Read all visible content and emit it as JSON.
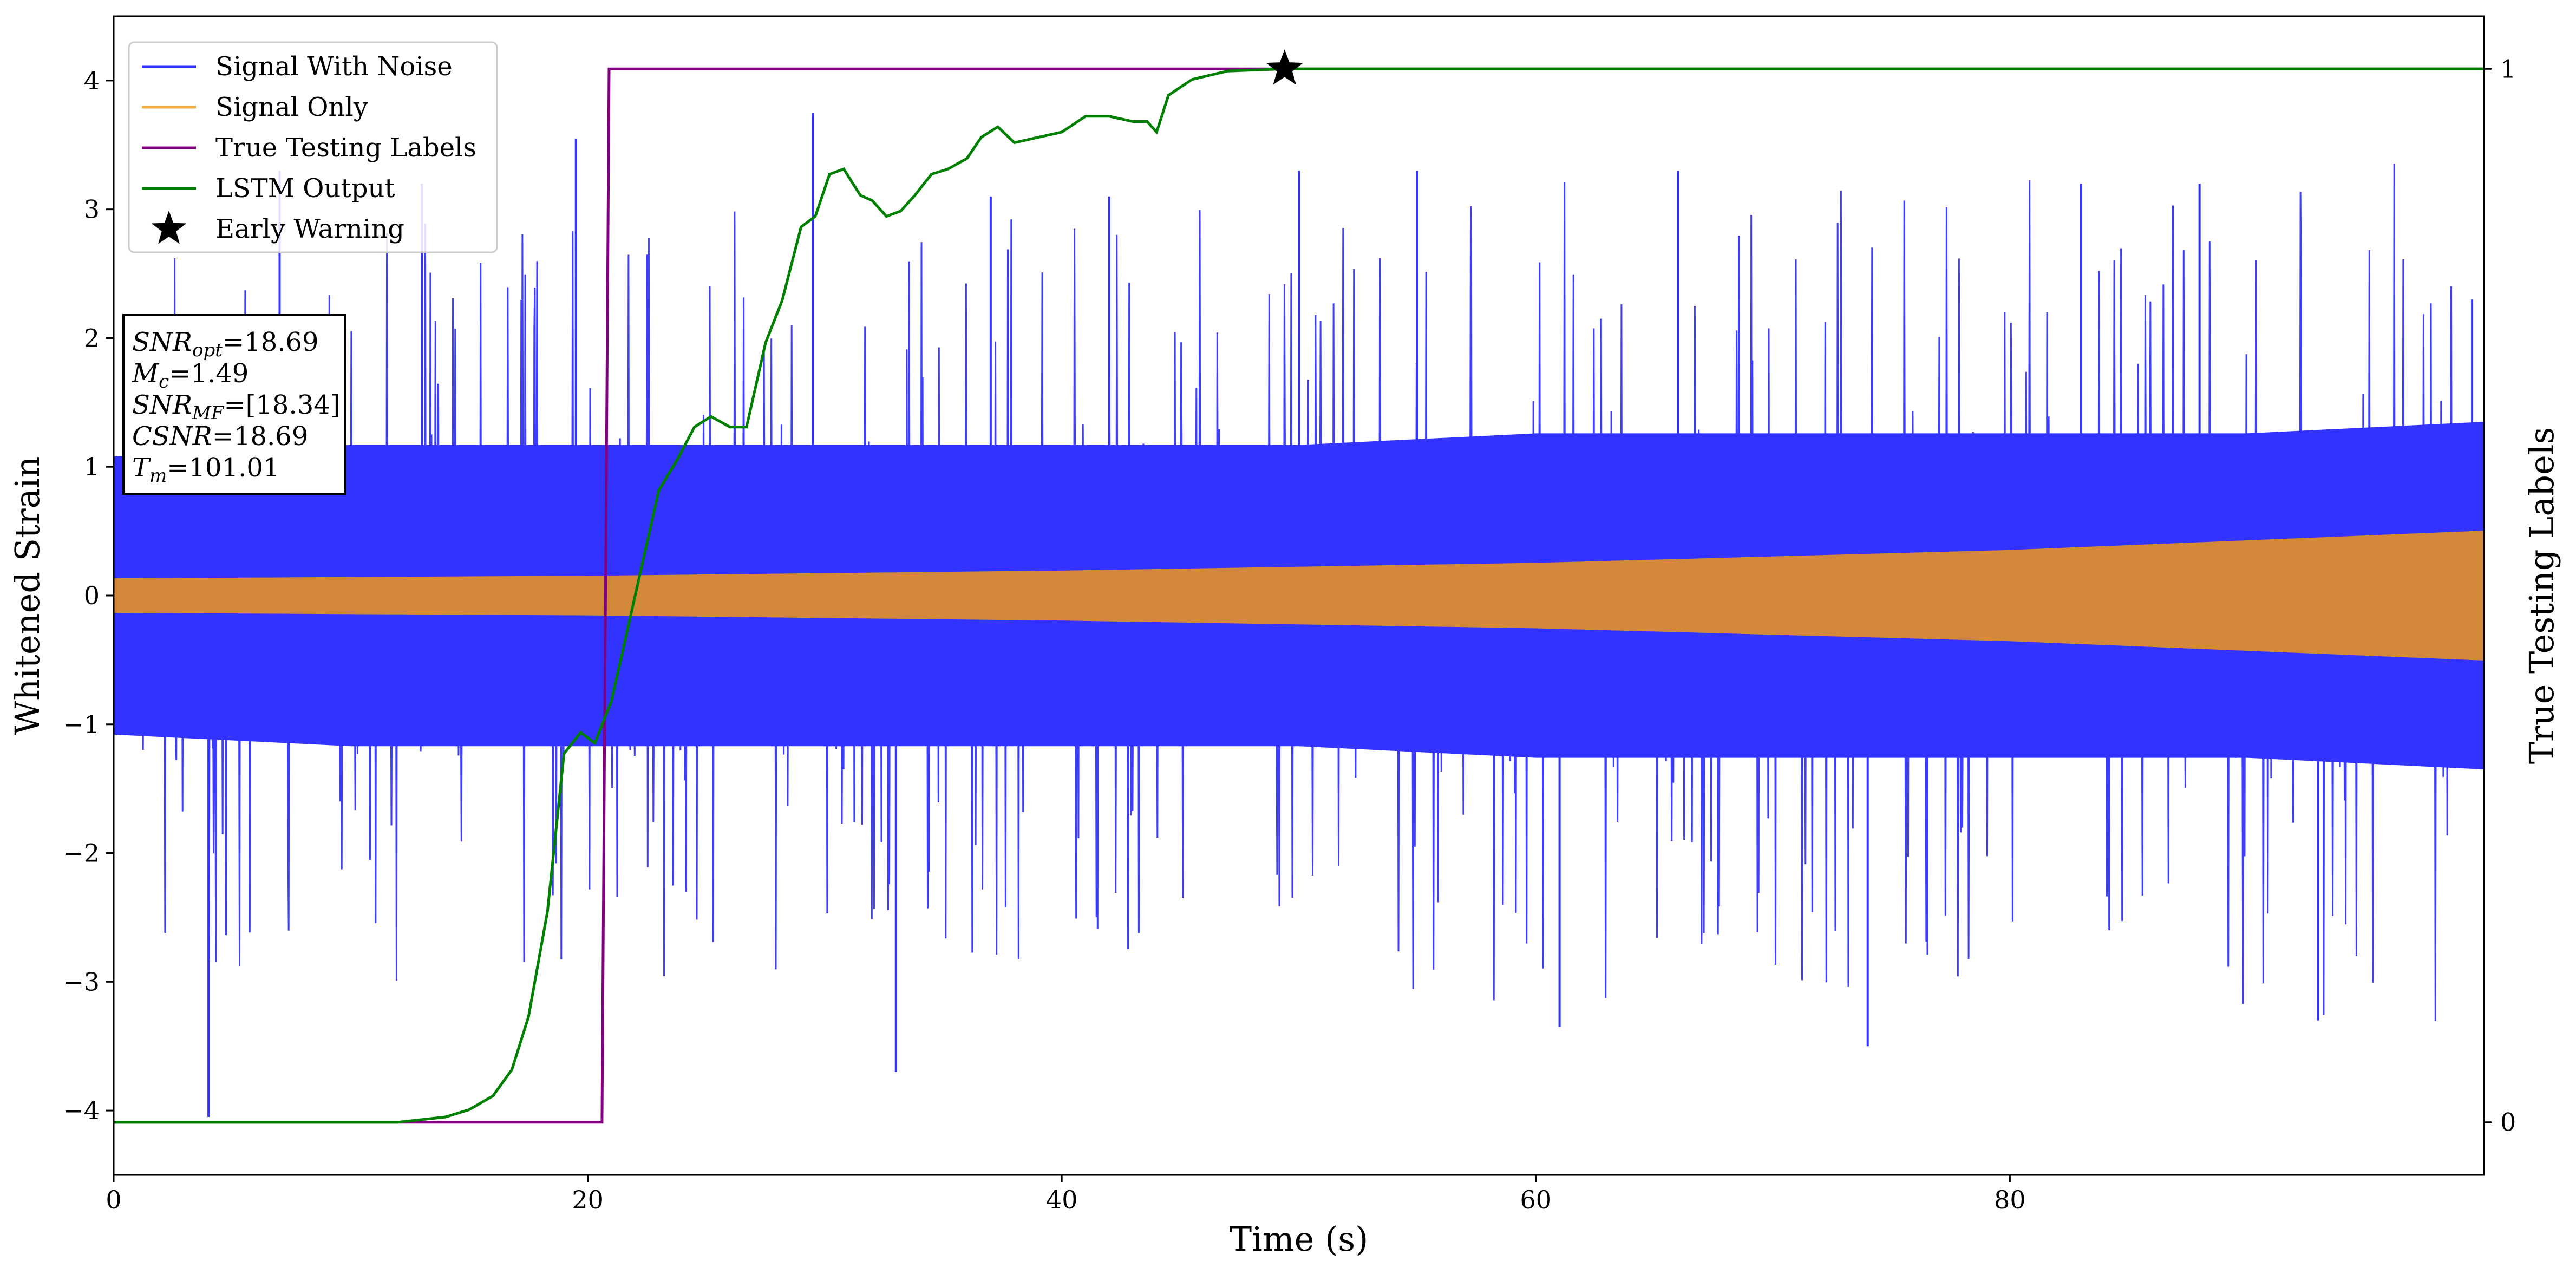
{
  "chart_data": {
    "type": "line",
    "xlabel": "Time (s)",
    "ylabel": "Whitened Strain",
    "ylabel_right": "True Testing Labels",
    "xlim": [
      0,
      100
    ],
    "ylim": [
      -4.5,
      4.5
    ],
    "ylim_right": [
      -0.05,
      1.05
    ],
    "x_ticks": [
      "0",
      "20",
      "40",
      "60",
      "80"
    ],
    "x_tick_values": [
      0,
      20,
      40,
      60,
      80
    ],
    "y_ticks": [
      "−4",
      "−3",
      "−2",
      "−1",
      "0",
      "1",
      "2",
      "3",
      "4"
    ],
    "y_tick_values": [
      -4,
      -3,
      -2,
      -1,
      0,
      1,
      2,
      3,
      4
    ],
    "y_right_ticks": [
      "0",
      "1"
    ],
    "y_right_tick_values": [
      0,
      1
    ],
    "grid": false,
    "legend_position": "top-left",
    "series": [
      {
        "name": "Signal With Noise",
        "color": "#3333ff",
        "axis": "left",
        "description_of_values": "dense noise band",
        "envelope_x": [
          0,
          10,
          20,
          30,
          40,
          50,
          60,
          70,
          80,
          90,
          100
        ],
        "envelope_upper": [
          1.2,
          1.3,
          1.3,
          1.3,
          1.3,
          1.3,
          1.4,
          1.4,
          1.4,
          1.4,
          1.5
        ],
        "envelope_lower": [
          -1.2,
          -1.3,
          -1.3,
          -1.3,
          -1.3,
          -1.3,
          -1.4,
          -1.4,
          -1.4,
          -1.4,
          -1.5
        ],
        "spikes_x": [
          4,
          7,
          13,
          19.5,
          29.5,
          33,
          37,
          42,
          50,
          55,
          61,
          66,
          74,
          83,
          88,
          93,
          99.5
        ],
        "spikes_y": [
          -4.05,
          3.3,
          3.2,
          3.55,
          3.75,
          -3.7,
          3.1,
          3.1,
          3.3,
          3.3,
          -3.35,
          3.3,
          -3.5,
          3.2,
          3.2,
          -3.3,
          2.3
        ]
      },
      {
        "name": "Signal Only",
        "color": "#f2a93b",
        "axis": "left",
        "envelope_x": [
          0,
          20,
          40,
          60,
          80,
          100
        ],
        "amplitude": [
          0.13,
          0.15,
          0.19,
          0.25,
          0.35,
          0.5
        ]
      },
      {
        "name": "True Testing Labels",
        "color": "#800080",
        "axis": "right",
        "x": [
          0,
          20.6,
          20.9,
          100
        ],
        "y": [
          0,
          0,
          1,
          1
        ]
      },
      {
        "name": "LSTM Output",
        "color": "#008000",
        "axis": "right",
        "x": [
          0,
          12,
          14,
          15,
          16,
          16.8,
          17.5,
          18.3,
          19,
          19.7,
          20.3,
          21,
          21.5,
          22.2,
          23,
          23.8,
          24.5,
          25.2,
          26,
          26.7,
          27.5,
          28.2,
          29,
          29.6,
          30.2,
          30.8,
          31.5,
          32,
          32.6,
          33.2,
          33.8,
          34.5,
          35.2,
          36,
          36.6,
          37.3,
          38,
          39,
          40,
          41,
          42,
          43,
          43.6,
          44,
          44.5,
          45.5,
          47,
          49.4,
          52,
          56,
          60,
          64,
          68,
          100
        ],
        "y": [
          0,
          0,
          0.005,
          0.012,
          0.025,
          0.05,
          0.1,
          0.2,
          0.35,
          0.37,
          0.36,
          0.4,
          0.45,
          0.52,
          0.6,
          0.63,
          0.66,
          0.67,
          0.66,
          0.66,
          0.74,
          0.78,
          0.85,
          0.86,
          0.9,
          0.905,
          0.88,
          0.875,
          0.86,
          0.865,
          0.88,
          0.9,
          0.905,
          0.915,
          0.935,
          0.945,
          0.93,
          0.935,
          0.94,
          0.955,
          0.955,
          0.95,
          0.95,
          0.94,
          0.975,
          0.99,
          0.998,
          1,
          1,
          1,
          1,
          1,
          1,
          1
        ]
      }
    ],
    "early_warning": {
      "name": "Early Warning",
      "x": 49.4,
      "y": 1.0,
      "marker": "star",
      "color": "#000000"
    },
    "annotation_box": [
      {
        "main": "SNR",
        "sub": "opt",
        "italic": true,
        "value": "=18.69"
      },
      {
        "main": "M",
        "sub": "c",
        "italic": true,
        "value": "=1.49"
      },
      {
        "main": "SNR",
        "sub": "MF",
        "italic": true,
        "value": "=[18.34]"
      },
      {
        "main": "CSNR",
        "sub": "",
        "italic": true,
        "value": "=18.69"
      },
      {
        "main": "T",
        "sub": "m",
        "italic": true,
        "value": "=101.01"
      }
    ]
  }
}
